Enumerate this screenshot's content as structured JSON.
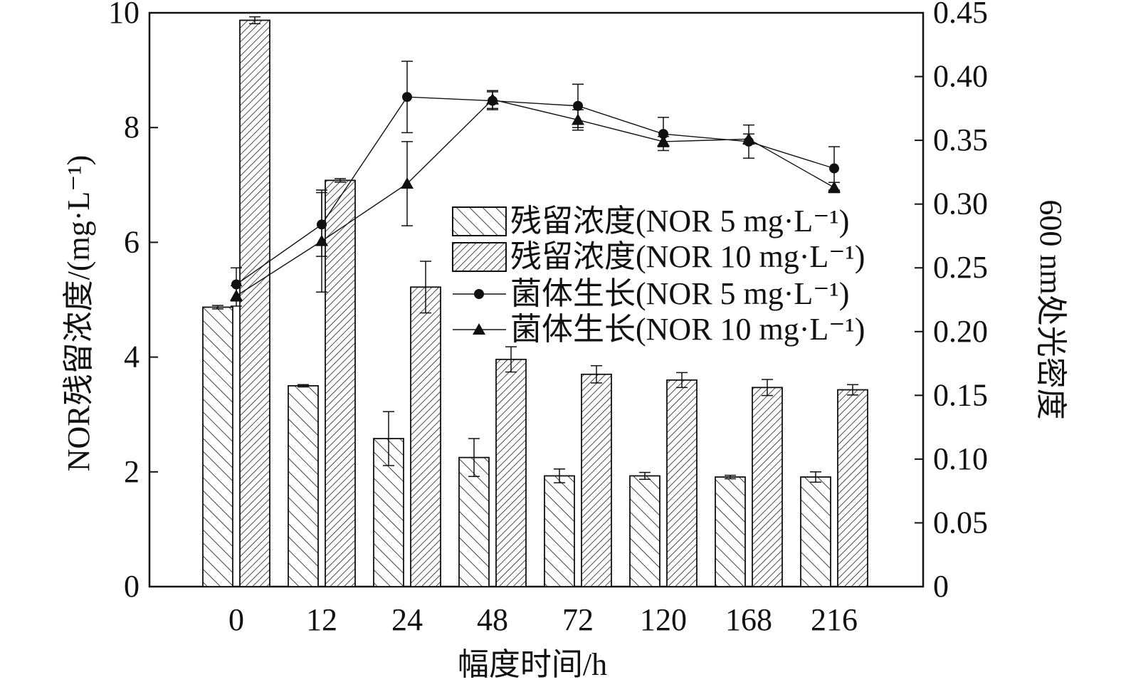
{
  "chart_data": {
    "type": "bar",
    "xlabel": "幅度时间/h",
    "ylabel": "NOR残留浓度/(mg·L⁻¹)",
    "y2label": "600 nm处光密度",
    "categories": [
      "0",
      "12",
      "24",
      "48",
      "72",
      "120",
      "168",
      "216"
    ],
    "ylim": [
      0,
      10
    ],
    "yticks": [
      "0",
      "2",
      "4",
      "6",
      "8",
      "10"
    ],
    "y2lim": [
      0,
      0.45
    ],
    "y2ticks": [
      "0",
      "0.05",
      "0.10",
      "0.15",
      "0.20",
      "0.25",
      "0.30",
      "0.35",
      "0.40",
      "0.45"
    ],
    "bar_series": [
      {
        "name": "残留浓度(NOR 5 mg·L⁻¹)",
        "pattern": "diag-up",
        "values": [
          4.87,
          3.5,
          2.58,
          2.25,
          1.93,
          1.93,
          1.91,
          1.91
        ],
        "errors": [
          0.03,
          0.02,
          0.47,
          0.33,
          0.12,
          0.06,
          0.03,
          0.09
        ]
      },
      {
        "name": "残留浓度(NOR 10 mg·L⁻¹)",
        "pattern": "diag-down",
        "values": [
          9.87,
          7.08,
          5.22,
          3.96,
          3.7,
          3.6,
          3.47,
          3.43
        ],
        "errors": [
          0.06,
          0.03,
          0.45,
          0.22,
          0.15,
          0.13,
          0.14,
          0.09
        ]
      }
    ],
    "line_series": [
      {
        "name": "菌体生长(NOR 5 mg·L⁻¹)",
        "marker": "circle",
        "values": [
          0.237,
          0.284,
          0.384,
          0.381,
          0.377,
          0.355,
          0.349,
          0.328
        ],
        "errors": [
          0.013,
          0.025,
          0.028,
          0.007,
          0.017,
          0.013,
          0.013,
          0.017
        ]
      },
      {
        "name": "菌体生长(NOR 10 mg·L⁻¹)",
        "marker": "triangle",
        "values": [
          0.228,
          0.271,
          0.316,
          0.382,
          0.366,
          0.349,
          0.351,
          0.313
        ],
        "errors": [
          0.008,
          0.04,
          0.033,
          0.007,
          0.008,
          0.004,
          0.004,
          0.004
        ]
      }
    ],
    "legend": {
      "position": "center-right"
    }
  }
}
